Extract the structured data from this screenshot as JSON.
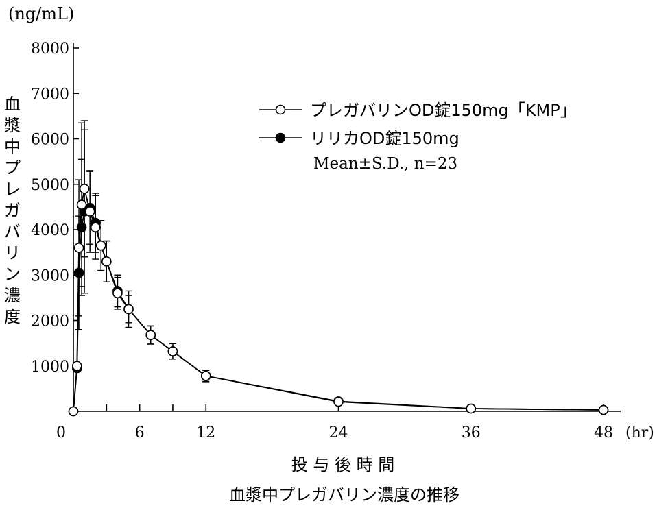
{
  "chart_data": {
    "type": "line",
    "unit_label": "(ng/mL)",
    "ylabel": "血漿中プレガバリン濃度",
    "xlabel": "投 与 後 時 間",
    "x_unit": "(hr)",
    "caption": "血漿中プレガバリン濃度の推移",
    "xlim": [
      0,
      48
    ],
    "ylim": [
      0,
      8000
    ],
    "x_ticks": [
      0,
      6,
      12,
      24,
      36,
      48
    ],
    "x_minor_ticks": [
      3,
      9
    ],
    "y_ticks": [
      1000,
      2000,
      3000,
      4000,
      5000,
      6000,
      7000,
      8000
    ],
    "legend_position": "top-right",
    "legend_note": "Mean±S.D., n=23",
    "series": [
      {
        "name": "プレガバリンOD錠150mg「KMP」",
        "marker": "open-circle",
        "x": [
          0,
          0.33,
          0.5,
          0.75,
          1,
          1.5,
          2,
          2.5,
          3,
          4,
          5,
          7,
          9,
          12,
          24,
          36,
          48
        ],
        "y": [
          0,
          1000,
          3600,
          4550,
          4900,
          4400,
          4050,
          3650,
          3300,
          2600,
          2250,
          1680,
          1320,
          780,
          210,
          60,
          30
        ],
        "sd": [
          0,
          0,
          1500,
          1800,
          1500,
          900,
          700,
          550,
          450,
          350,
          300,
          200,
          170,
          120,
          0,
          0,
          0
        ]
      },
      {
        "name": "リリカOD錠150mg",
        "marker": "filled-circle",
        "x": [
          0,
          0.33,
          0.5,
          0.75,
          1,
          1.5,
          2,
          2.5,
          3,
          4,
          5,
          7,
          9,
          12,
          24,
          36,
          48
        ],
        "y": [
          0,
          950,
          3050,
          4050,
          4400,
          4480,
          4150,
          3650,
          3300,
          2650,
          2250,
          1680,
          1320,
          780,
          220,
          60,
          30
        ],
        "sd": [
          0,
          0,
          1250,
          1500,
          1800,
          800,
          650,
          550,
          450,
          350,
          400,
          200,
          170,
          130,
          0,
          0,
          0
        ]
      }
    ]
  }
}
